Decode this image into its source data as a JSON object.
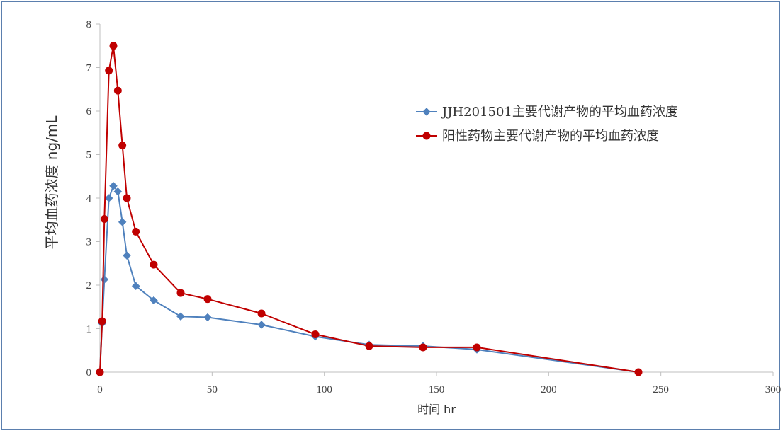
{
  "chart_data": {
    "type": "line",
    "title": "",
    "xlabel": "时间 hr",
    "ylabel": "平均血药浓度 ng/mL",
    "xlim": [
      0,
      300
    ],
    "ylim": [
      0,
      8
    ],
    "xticks": [
      0,
      50,
      100,
      150,
      200,
      250,
      300
    ],
    "yticks": [
      0,
      1,
      2,
      3,
      4,
      5,
      6,
      7,
      8
    ],
    "grid": false,
    "legend_position": "right",
    "series": [
      {
        "name": "JJH201501主要代谢产物的平均血药浓度",
        "color": "#4f81bd",
        "marker": "diamond",
        "points": [
          [
            0,
            0
          ],
          [
            1,
            1.12
          ],
          [
            2,
            2.13
          ],
          [
            4,
            4.0
          ],
          [
            6,
            4.28
          ],
          [
            8,
            4.15
          ],
          [
            10,
            3.45
          ],
          [
            12,
            2.68
          ],
          [
            16,
            1.98
          ],
          [
            24,
            1.65
          ],
          [
            36,
            1.28
          ],
          [
            48,
            1.26
          ],
          [
            72,
            1.09
          ],
          [
            96,
            0.82
          ],
          [
            120,
            0.63
          ],
          [
            144,
            0.6
          ],
          [
            168,
            0.52
          ],
          [
            240,
            0.0
          ]
        ]
      },
      {
        "name": "阳性药物主要代谢产物的平均血药浓度",
        "color": "#c00000",
        "marker": "circle",
        "points": [
          [
            0,
            0
          ],
          [
            1,
            1.17
          ],
          [
            2,
            3.52
          ],
          [
            4,
            6.93
          ],
          [
            6,
            7.5
          ],
          [
            8,
            6.47
          ],
          [
            10,
            5.21
          ],
          [
            12,
            4.0
          ],
          [
            16,
            3.23
          ],
          [
            24,
            2.47
          ],
          [
            36,
            1.82
          ],
          [
            48,
            1.68
          ],
          [
            72,
            1.35
          ],
          [
            96,
            0.87
          ],
          [
            120,
            0.6
          ],
          [
            144,
            0.57
          ],
          [
            168,
            0.57
          ],
          [
            240,
            0.0
          ]
        ]
      }
    ]
  }
}
